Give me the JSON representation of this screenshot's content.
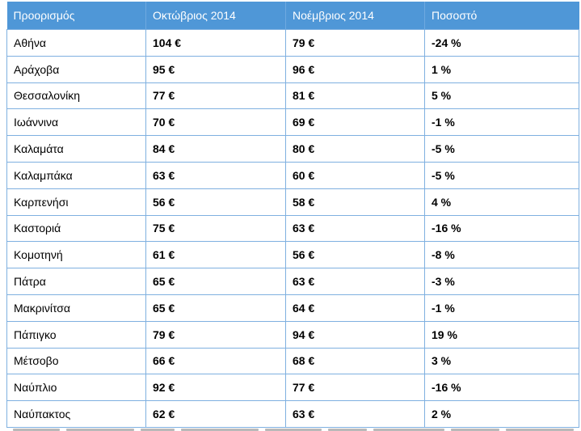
{
  "table": {
    "headers": [
      "Προορισμός",
      "Οκτώβριος 2014",
      "Νοέμβριος 2014",
      "Ποσοστό"
    ],
    "rows": [
      [
        "Αθήνα",
        "104 €",
        "79 €",
        "-24 %"
      ],
      [
        "Αράχοβα",
        "95 €",
        "96 €",
        "1 %"
      ],
      [
        "Θεσσαλονίκη",
        "77 €",
        "81 €",
        "5 %"
      ],
      [
        "Ιωάννινα",
        "70 €",
        "69 €",
        "-1 %"
      ],
      [
        "Καλαμάτα",
        "84 €",
        "80 €",
        "-5 %"
      ],
      [
        "Καλαμπάκα",
        "63 €",
        "60 €",
        "-5 %"
      ],
      [
        "Καρπενήσι",
        "56 €",
        "58 €",
        "4 %"
      ],
      [
        "Καστοριά",
        "75 €",
        "63 €",
        "-16 %"
      ],
      [
        "Κομοτηνή",
        "61 €",
        "56 €",
        "-8 %"
      ],
      [
        "Πάτρα",
        "65 €",
        "63 €",
        "-3 %"
      ],
      [
        "Μακρινίτσα",
        "65 €",
        "64 €",
        "-1 %"
      ],
      [
        "Πάπιγκο",
        "79 €",
        "94 €",
        "19 %"
      ],
      [
        "Μέτσοβο",
        "66 €",
        "68 €",
        "3 %"
      ],
      [
        "Ναύπλιο",
        "92 €",
        "77 €",
        "-16 %"
      ],
      [
        "Ναύπακτος",
        "62 €",
        "63 €",
        "2 %"
      ]
    ]
  },
  "colors": {
    "header_bg": "#4f97d7",
    "header_text": "#ffffff",
    "border": "#7fb0e0"
  }
}
